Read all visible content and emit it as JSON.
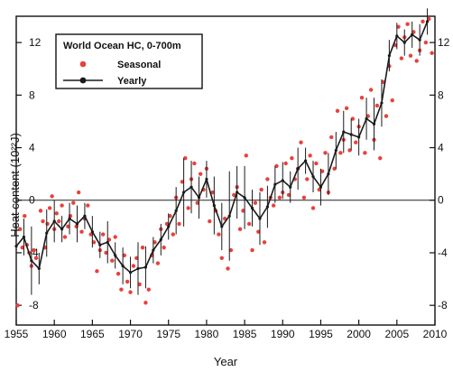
{
  "chart_data": {
    "type": "line",
    "title": "",
    "xlabel": "Year",
    "ylabel": "Heat content (10²²J)",
    "xlim": [
      1955,
      2010
    ],
    "ylim": [
      -9.5,
      14
    ],
    "x_ticks": [
      1955,
      1960,
      1965,
      1970,
      1975,
      1980,
      1985,
      1990,
      1995,
      2000,
      2005,
      2010
    ],
    "y_ticks": [
      -8,
      -4,
      0,
      4,
      8,
      12
    ],
    "zero_line": 0,
    "legend": {
      "title": "World Ocean HC, 0-700m",
      "placement": "top-left",
      "entries": [
        "Seasonal",
        "Yearly"
      ]
    },
    "colors": {
      "seasonal": "#e8413c",
      "yearly": "#1a1a1a"
    },
    "series": [
      {
        "name": "Yearly",
        "x": [
          1955,
          1956,
          1957,
          1958,
          1959,
          1960,
          1961,
          1962,
          1963,
          1964,
          1965,
          1966,
          1967,
          1968,
          1969,
          1970,
          1971,
          1972,
          1973,
          1974,
          1975,
          1976,
          1977,
          1978,
          1979,
          1980,
          1981,
          1982,
          1983,
          1984,
          1985,
          1986,
          1987,
          1988,
          1989,
          1990,
          1991,
          1992,
          1993,
          1994,
          1995,
          1996,
          1997,
          1998,
          1999,
          2000,
          2001,
          2002,
          2003,
          2004,
          2005,
          2006,
          2007,
          2008,
          2009
        ],
        "y": [
          -3.5,
          -2.8,
          -4.6,
          -5.2,
          -2.5,
          -1.6,
          -2.2,
          -1.4,
          -1.8,
          -1.2,
          -2.4,
          -3.4,
          -3.2,
          -4.2,
          -5.0,
          -5.5,
          -5.2,
          -5.1,
          -3.8,
          -3.0,
          -2.0,
          -0.8,
          0.6,
          1.0,
          0.2,
          1.6,
          -0.4,
          -2.0,
          -1.2,
          0.6,
          0.2,
          -0.6,
          -1.4,
          -0.5,
          1.2,
          1.5,
          1.0,
          2.4,
          3.0,
          1.8,
          1.0,
          2.0,
          3.8,
          5.2,
          5.0,
          4.8,
          6.2,
          5.8,
          7.4,
          11.0,
          12.5,
          12.0,
          12.6,
          12.2,
          13.6
        ],
        "err": [
          3.0,
          1.4,
          2.6,
          1.2,
          1.8,
          1.6,
          1.0,
          1.2,
          1.4,
          1.0,
          1.2,
          1.0,
          1.6,
          1.0,
          1.4,
          1.2,
          2.0,
          1.6,
          1.0,
          1.2,
          1.0,
          1.8,
          2.6,
          2.0,
          1.6,
          1.4,
          2.2,
          1.8,
          3.4,
          2.0,
          2.4,
          1.4,
          2.0,
          1.6,
          1.4,
          1.4,
          1.2,
          1.6,
          1.0,
          1.2,
          1.4,
          1.6,
          1.4,
          1.6,
          1.2,
          1.4,
          1.6,
          2.0,
          1.8,
          1.2,
          1.0,
          1.0,
          1.0,
          1.2,
          1.0
        ]
      },
      {
        "name": "Seasonal",
        "x": [
          1955.2,
          1955.5,
          1955.8,
          1956.1,
          1956.4,
          1956.7,
          1957.0,
          1957.3,
          1957.6,
          1958.2,
          1958.5,
          1958.8,
          1959.1,
          1959.4,
          1959.7,
          1960.0,
          1960.3,
          1960.6,
          1961.0,
          1961.4,
          1961.8,
          1962.1,
          1962.5,
          1962.9,
          1963.2,
          1963.6,
          1964.0,
          1964.4,
          1964.8,
          1965.2,
          1965.6,
          1966.0,
          1966.4,
          1966.8,
          1967.2,
          1967.6,
          1968.0,
          1968.4,
          1968.8,
          1969.2,
          1969.6,
          1970.0,
          1970.4,
          1970.8,
          1971.2,
          1971.6,
          1972.0,
          1972.4,
          1972.8,
          1973.2,
          1973.6,
          1974.0,
          1974.4,
          1974.8,
          1975.2,
          1975.6,
          1976.0,
          1976.4,
          1976.8,
          1977.2,
          1977.6,
          1978.0,
          1978.4,
          1978.8,
          1979.2,
          1979.6,
          1980.0,
          1980.4,
          1980.8,
          1981.2,
          1981.6,
          1982.0,
          1982.4,
          1982.8,
          1983.2,
          1983.6,
          1984.0,
          1984.4,
          1984.8,
          1985.2,
          1985.6,
          1986.0,
          1986.4,
          1986.8,
          1987.2,
          1987.6,
          1988.0,
          1988.4,
          1988.8,
          1989.2,
          1989.6,
          1990.0,
          1990.4,
          1990.8,
          1991.2,
          1991.6,
          1992.0,
          1992.4,
          1992.8,
          1993.2,
          1993.6,
          1994.0,
          1994.4,
          1994.8,
          1995.2,
          1995.6,
          1996.0,
          1996.4,
          1996.8,
          1997.2,
          1997.6,
          1998.0,
          1998.4,
          1998.8,
          1999.2,
          1999.6,
          2000.0,
          2000.4,
          2000.8,
          2001.2,
          2001.6,
          2002.0,
          2002.4,
          2002.8,
          2003.2,
          2003.6,
          2004.0,
          2004.4,
          2004.8,
          2005.2,
          2005.6,
          2006.0,
          2006.4,
          2006.8,
          2007.2,
          2007.6,
          2008.0,
          2008.4,
          2008.8,
          2009.2,
          2009.6
        ],
        "y": [
          -8.0,
          -2.2,
          -3.6,
          -1.2,
          -3.4,
          -4.0,
          -5.0,
          -3.8,
          -4.4,
          -0.8,
          -1.6,
          -3.6,
          -1.8,
          -0.6,
          0.3,
          -2.2,
          -1.0,
          -1.6,
          -0.4,
          -2.8,
          -2.0,
          -1.2,
          -0.2,
          -2.0,
          0.6,
          -2.4,
          -1.4,
          -0.4,
          -2.6,
          -3.2,
          -5.4,
          -3.8,
          -2.6,
          -4.0,
          -3.0,
          -4.6,
          -2.8,
          -5.6,
          -6.8,
          -4.2,
          -6.2,
          -7.0,
          -5.0,
          -4.4,
          -6.4,
          -3.6,
          -7.8,
          -6.8,
          -4.2,
          -3.2,
          -4.8,
          -2.2,
          -3.6,
          -1.8,
          -1.2,
          -2.6,
          0.2,
          -1.8,
          1.4,
          3.2,
          -0.6,
          1.6,
          2.8,
          -0.2,
          2.0,
          0.8,
          2.4,
          -1.6,
          0.6,
          -0.8,
          -2.6,
          -4.4,
          -1.4,
          -5.2,
          -3.8,
          0.4,
          1.0,
          -2.2,
          -0.8,
          3.4,
          -1.8,
          -3.8,
          -0.2,
          -2.4,
          0.8,
          -3.2,
          1.6,
          0.2,
          -0.4,
          2.6,
          0.2,
          0.6,
          2.8,
          0.4,
          3.2,
          1.6,
          2.4,
          4.4,
          0.2,
          1.6,
          3.4,
          -0.6,
          2.8,
          0.8,
          2.2,
          3.6,
          0.6,
          4.8,
          2.4,
          6.8,
          3.6,
          4.6,
          7.0,
          3.8,
          6.2,
          4.4,
          5.6,
          7.8,
          3.6,
          6.4,
          8.4,
          4.6,
          7.2,
          3.2,
          9.0,
          6.4,
          10.2,
          7.6,
          11.8,
          13.2,
          10.8,
          12.4,
          13.4,
          11.0,
          12.8,
          10.6,
          11.4,
          13.6,
          12.0,
          13.8,
          11.2
        ]
      }
    ]
  }
}
